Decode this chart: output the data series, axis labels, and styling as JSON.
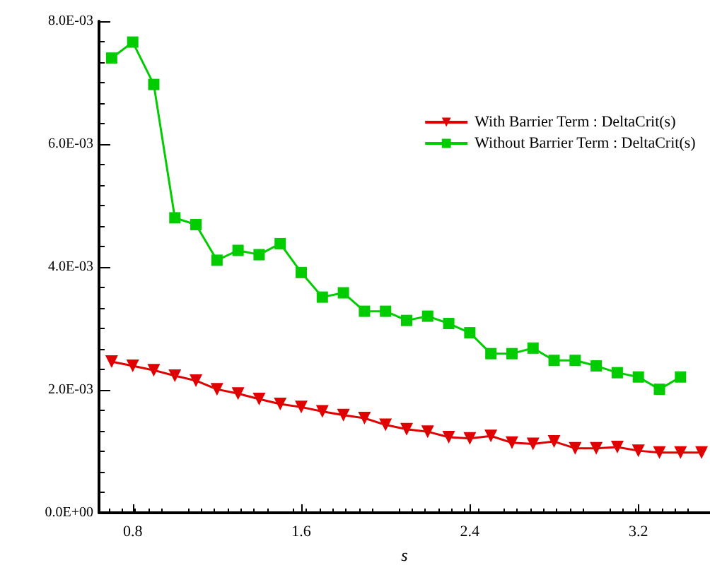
{
  "chart_data": {
    "type": "line",
    "xlabel": "s",
    "x": [
      0.7,
      0.8,
      0.9,
      1.0,
      1.1,
      1.2,
      1.3,
      1.4,
      1.5,
      1.6,
      1.7,
      1.8,
      1.9,
      2.0,
      2.1,
      2.2,
      2.3,
      2.4,
      2.5,
      2.6,
      2.7,
      2.8,
      2.9,
      3.0,
      3.1,
      3.2,
      3.3,
      3.4,
      3.5
    ],
    "series": [
      {
        "name": "With Barrier Term : DeltaCrit(s)",
        "color": "#e00000",
        "marker": "triangle",
        "values": [
          0.00246,
          0.00239,
          0.00232,
          0.00223,
          0.00215,
          0.00201,
          0.00194,
          0.00185,
          0.00177,
          0.00172,
          0.00165,
          0.00159,
          0.00154,
          0.00143,
          0.00136,
          0.00132,
          0.00123,
          0.00121,
          0.00125,
          0.00114,
          0.00112,
          0.00116,
          0.00105,
          0.00105,
          0.00107,
          0.00101,
          0.00098,
          0.00098,
          0.00098
        ]
      },
      {
        "name": "Without Barrier Term : DeltaCrit(s)",
        "color": "#00cc00",
        "marker": "square",
        "values": [
          0.0074,
          0.00766,
          0.00697,
          0.0048,
          0.00469,
          0.00411,
          0.00427,
          0.0042,
          0.00438,
          0.00391,
          0.00351,
          0.00358,
          0.00328,
          0.00328,
          0.00313,
          0.0032,
          0.00308,
          0.00293,
          0.00259,
          0.00259,
          0.00268,
          0.00248,
          0.00248,
          0.00239,
          0.00228,
          0.00221,
          0.00201,
          0.00221,
          null
        ]
      }
    ],
    "xlim": [
      0.64,
      3.54
    ],
    "xticks": [
      0.8,
      1.6,
      2.4,
      3.2
    ],
    "ylim": [
      0,
      0.008
    ],
    "yticks": [
      {
        "value": 0,
        "label": "0.0E+00"
      },
      {
        "value": 0.002,
        "label": "2.0E-03"
      },
      {
        "value": 0.004,
        "label": "4.0E-03"
      },
      {
        "value": 0.006,
        "label": "6.0E-03"
      },
      {
        "value": 0.008,
        "label": "8.0E-03"
      }
    ],
    "grid": false,
    "legend": "top right"
  }
}
